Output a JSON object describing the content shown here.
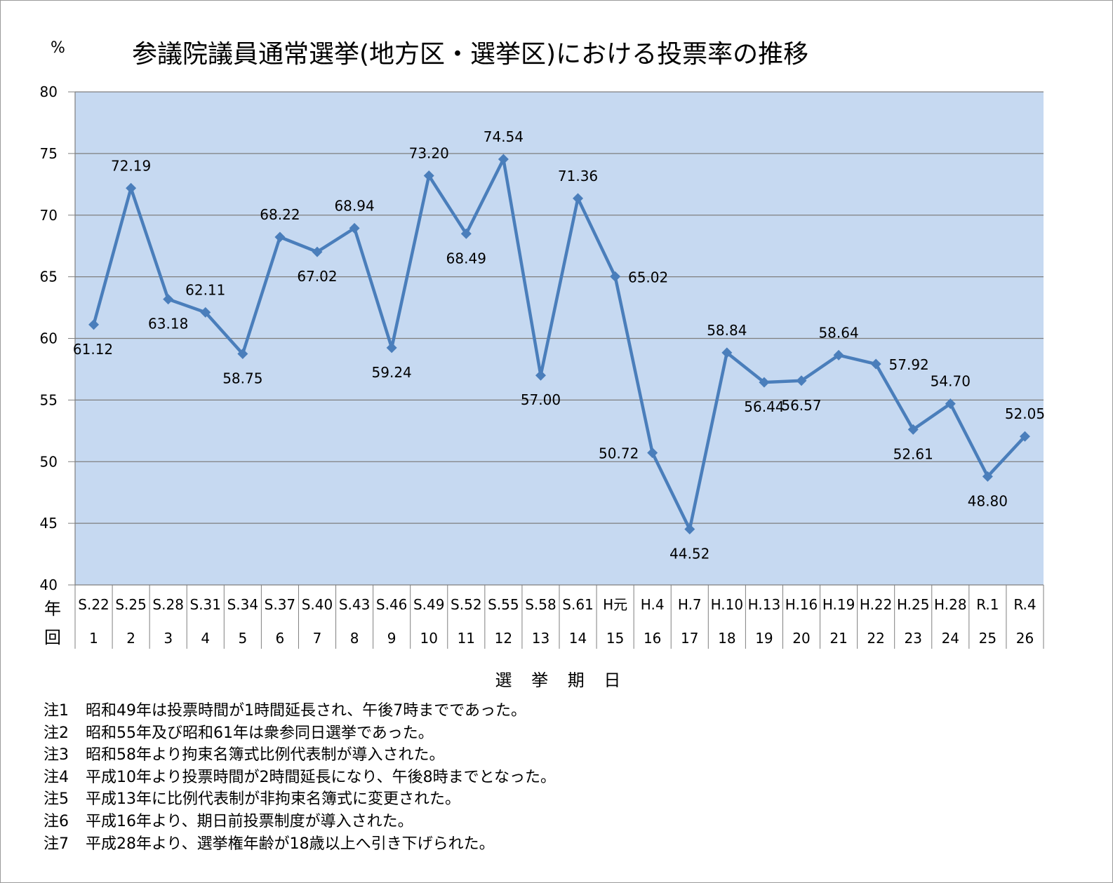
{
  "unit": "%",
  "chart_data": {
    "type": "line",
    "title": "参議院議員通常選挙(地方区・選挙区)における投票率の推移",
    "ylabel": "%",
    "xlabel": "選 挙 期 日",
    "ylim": [
      40,
      80
    ],
    "yticks": [
      80,
      75,
      70,
      65,
      60,
      55,
      50,
      45,
      40
    ],
    "grid": true,
    "row_labels": {
      "year": "年",
      "round": "回"
    },
    "categories": [
      "S.22",
      "S.25",
      "S.28",
      "S.31",
      "S.34",
      "S.37",
      "S.40",
      "S.43",
      "S.46",
      "S.49",
      "S.52",
      "S.55",
      "S.58",
      "S.61",
      "H元",
      "H.4",
      "H.7",
      "H.10",
      "H.13",
      "H.16",
      "H.19",
      "H.22",
      "H.25",
      "H.28",
      "R.1",
      "R.4"
    ],
    "rounds": [
      "1",
      "2",
      "3",
      "4",
      "5",
      "6",
      "7",
      "8",
      "9",
      "10",
      "11",
      "12",
      "13",
      "14",
      "15",
      "16",
      "17",
      "18",
      "19",
      "20",
      "21",
      "22",
      "23",
      "24",
      "25",
      "26"
    ],
    "values": [
      61.12,
      72.19,
      63.18,
      62.11,
      58.75,
      68.22,
      67.02,
      68.94,
      59.24,
      73.2,
      68.49,
      74.54,
      57.0,
      71.36,
      65.02,
      50.72,
      44.52,
      58.84,
      56.44,
      56.57,
      58.64,
      57.92,
      52.61,
      54.7,
      48.8,
      52.05
    ],
    "value_labels": [
      "61.12",
      "72.19",
      "63.18",
      "62.11",
      "58.75",
      "68.22",
      "67.02",
      "68.94",
      "59.24",
      "73.20",
      "68.49",
      "74.54",
      "57.00",
      "71.36",
      "65.02",
      "50.72",
      "44.52",
      "58.84",
      "56.44",
      "56.57",
      "58.64",
      "57.92",
      "52.61",
      "54.70",
      "48.80",
      "52.05"
    ],
    "colors": {
      "plot_bg": "#c6d9f1",
      "line": "#4a7ebb",
      "grid": "#7f7f7f"
    }
  },
  "notes": [
    {
      "label": "注1",
      "text": "昭和49年は投票時間が1時間延長され、午後7時までであった。"
    },
    {
      "label": "注2",
      "text": "昭和55年及び昭和61年は衆参同日選挙であった。"
    },
    {
      "label": "注3",
      "text": "昭和58年より拘束名簿式比例代表制が導入された。"
    },
    {
      "label": "注4",
      "text": "平成10年より投票時間が2時間延長になり、午後8時までとなった。"
    },
    {
      "label": "注5",
      "text": "平成13年に比例代表制が非拘束名簿式に変更された。"
    },
    {
      "label": "注6",
      "text": "平成16年より、期日前投票制度が導入された。"
    },
    {
      "label": "注7",
      "text": "平成28年より、選挙権年齢が18歳以上へ引き下げられた。"
    }
  ]
}
